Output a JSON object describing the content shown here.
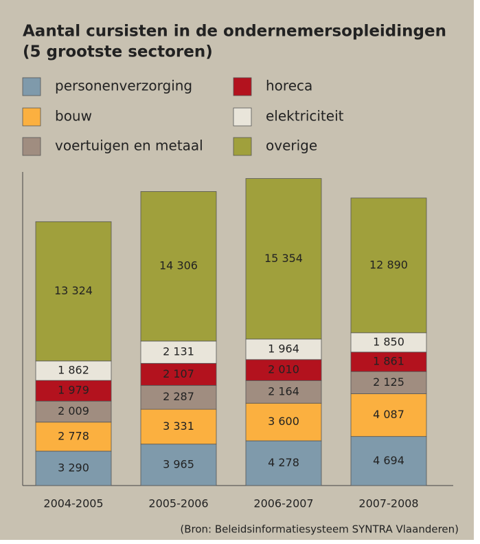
{
  "chart_data": {
    "type": "stacked_bar",
    "title": "Aantal cursisten in de ondernemersopleidingen",
    "subtitle": "(5 grootste sectoren)",
    "source": "(Bron: Beleidsinformatiesysteem SYNTRA Vlaanderen)",
    "categories": [
      "2004-2005",
      "2005-2006",
      "2006-2007",
      "2007-2008"
    ],
    "ylim": [
      0,
      30000
    ],
    "series": [
      {
        "name": "personenverzorging",
        "color": "#7f9aab",
        "values": [
          3290,
          3965,
          4278,
          4694
        ],
        "value_labels": [
          "3 290",
          "3 965",
          "4 278",
          "4 694"
        ]
      },
      {
        "name": "bouw",
        "color": "#fbb040",
        "values": [
          2778,
          3331,
          3600,
          4087
        ],
        "value_labels": [
          "2 778",
          "3 331",
          "3 600",
          "4 087"
        ]
      },
      {
        "name": "voertuigen en metaal",
        "color": "#a08d80",
        "values": [
          2009,
          2287,
          2164,
          2125
        ],
        "value_labels": [
          "2 009",
          "2 287",
          "2 164",
          "2 125"
        ]
      },
      {
        "name": "horeca",
        "color": "#b3121e",
        "values": [
          1979,
          2107,
          2010,
          1861
        ],
        "value_labels": [
          "1 979",
          "2 107",
          "2 010",
          "1 861"
        ]
      },
      {
        "name": "elektriciteit",
        "color": "#e9e5da",
        "values": [
          1862,
          2131,
          1964,
          1850
        ],
        "value_labels": [
          "1 862",
          "2 131",
          "1 964",
          "1 850"
        ]
      },
      {
        "name": "overige",
        "color": "#a0a03c",
        "values": [
          13324,
          14306,
          15354,
          12890
        ],
        "value_labels": [
          "13 324",
          "14 306",
          "15 354",
          "12 890"
        ]
      }
    ]
  }
}
